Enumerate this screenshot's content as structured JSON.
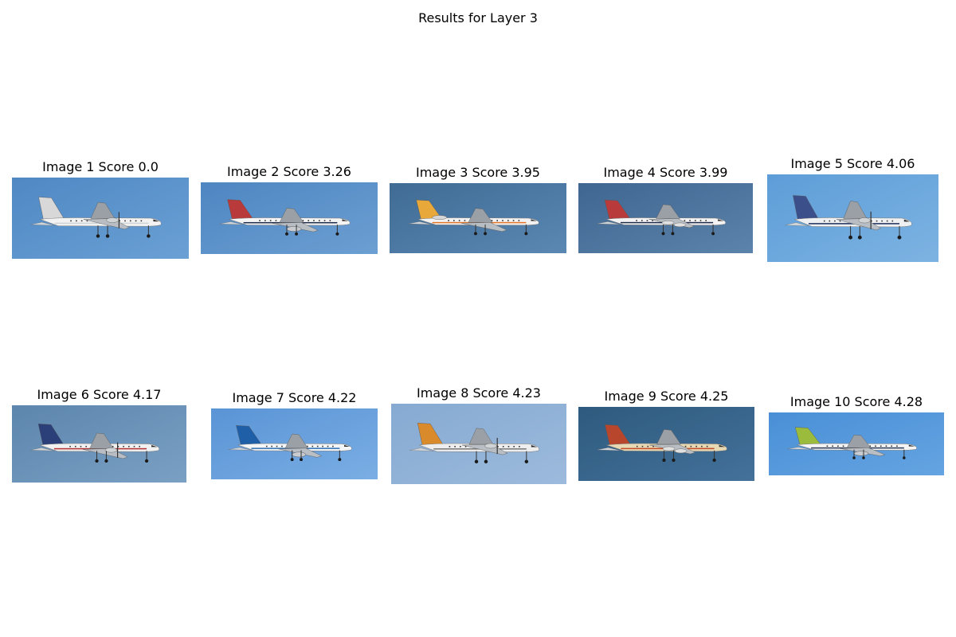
{
  "figure": {
    "title": "Results for Layer 3"
  },
  "images": [
    {
      "label": "Image 1 Score 0.0",
      "index": 1,
      "score": 0.0,
      "sky": [
        "#4f88c4",
        "#6aa0d4"
      ],
      "livery": {
        "body": "#f2f2f2",
        "stripe": "#cfd3d6",
        "tail": "#d8d8d8",
        "engine": "propeller-high-wing"
      }
    },
    {
      "label": "Image 2 Score 3.26",
      "index": 2,
      "score": 3.26,
      "sky": [
        "#4e86c2",
        "#6c9fd2"
      ],
      "livery": {
        "body": "#f4f4f4",
        "stripe": "#1d2a4a",
        "tail": "#b83a3a",
        "engine": "jet"
      }
    },
    {
      "label": "Image 3 Score 3.95",
      "index": 3,
      "score": 3.95,
      "sky": [
        "#3f6b94",
        "#5a88b3"
      ],
      "livery": {
        "body": "#f2f2f2",
        "stripe": "#e2742a",
        "tail": "#e8a93a",
        "engine": "jet-rear"
      }
    },
    {
      "label": "Image 4 Score 3.99",
      "index": 4,
      "score": 3.99,
      "sky": [
        "#3e6690",
        "#5b83ab"
      ],
      "livery": {
        "body": "#f3f3f3",
        "stripe": "#1d2a4a",
        "tail": "#b83a3a",
        "engine": "four-jet-high-wing"
      }
    },
    {
      "label": "Image 5 Score 4.06",
      "index": 5,
      "score": 4.06,
      "sky": [
        "#5d9dd8",
        "#7db3e2"
      ],
      "livery": {
        "body": "#eef0f2",
        "stripe": "#2f3f6a",
        "tail": "#3b4f8a",
        "engine": "propeller-high-wing"
      }
    },
    {
      "label": "Image 6 Score 4.17",
      "index": 6,
      "score": 4.17,
      "sky": [
        "#5d86ad",
        "#7aa0c4"
      ],
      "livery": {
        "body": "#f1f1f1",
        "stripe": "#b53030",
        "tail": "#2b3f78",
        "engine": "propeller-low-wing"
      }
    },
    {
      "label": "Image 7 Score 4.22",
      "index": 7,
      "score": 4.22,
      "sky": [
        "#5a94d6",
        "#7aaee4"
      ],
      "livery": {
        "body": "#f3f5f7",
        "stripe": "#2d6fb3",
        "tail": "#1f5fa8",
        "engine": "jet"
      }
    },
    {
      "label": "Image 8 Score 4.23",
      "index": 8,
      "score": 4.23,
      "sky": [
        "#86aad2",
        "#9cbadc"
      ],
      "livery": {
        "body": "#eeeeee",
        "stripe": "#7a7a7a",
        "tail": "#d98a2a",
        "engine": "propeller-high-wing"
      }
    },
    {
      "label": "Image 9 Score 4.25",
      "index": 9,
      "score": 4.25,
      "sky": [
        "#2e5a7e",
        "#44719a"
      ],
      "livery": {
        "body": "#e8d9b5",
        "stripe": "#c44a2a",
        "tail": "#b7462c",
        "engine": "four-jet-high-wing"
      }
    },
    {
      "label": "Image 10 Score 4.28",
      "index": 10,
      "score": 4.28,
      "sky": [
        "#4a8fd6",
        "#64a4e2"
      ],
      "livery": {
        "body": "#f4f4f4",
        "stripe": "#2c3a5a",
        "tail": "#9bbb3c",
        "engine": "jet"
      }
    }
  ]
}
